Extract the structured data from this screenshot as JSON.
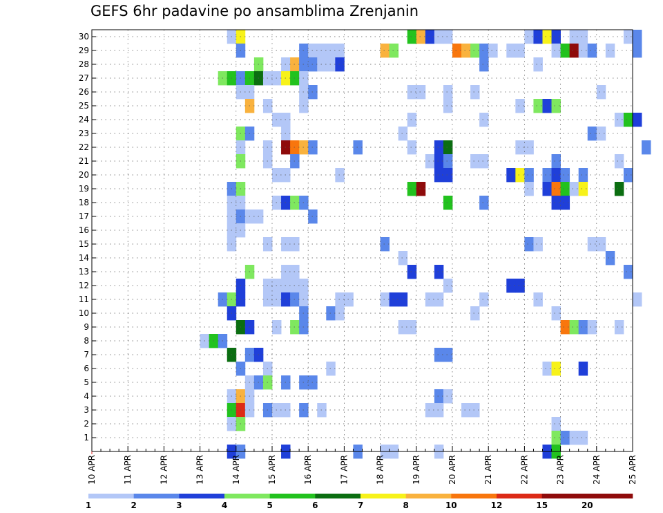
{
  "chart_data": {
    "type": "heatmap",
    "title": "GEFS 6hr padavine po ansamblima Zrenjanin",
    "x_tick_labels": [
      "10 APR",
      "11 APR",
      "12 APR",
      "13 APR",
      "14 APR",
      "15 APR",
      "16 APR",
      "17 APR",
      "18 APR",
      "19 APR",
      "20 APR",
      "21 APR",
      "22 APR",
      "23 APR",
      "24 APR",
      "25 APR"
    ],
    "y_tick_labels": [
      "1",
      "2",
      "3",
      "4",
      "5",
      "6",
      "7",
      "8",
      "9",
      "10",
      "11",
      "12",
      "13",
      "14",
      "15",
      "16",
      "17",
      "18",
      "19",
      "20",
      "21",
      "22",
      "23",
      "24",
      "25",
      "26",
      "27",
      "28",
      "29",
      "30"
    ],
    "x_range_days": [
      0,
      15
    ],
    "y_range_members": [
      0,
      30
    ],
    "grid": "dotted",
    "colorbar": {
      "labels": [
        "1",
        "2",
        "3",
        "4",
        "5",
        "6",
        "7",
        "8",
        "10",
        "12",
        "15",
        "20"
      ],
      "colors": [
        "#b3c7f7",
        "#5a87ea",
        "#1f3fd9",
        "#7fe85f",
        "#22c21e",
        "#0b6e11",
        "#f7f21a",
        "#f9b23e",
        "#f8760d",
        "#dc2a16",
        "#8f0b0b"
      ]
    },
    "cells_level_legend": "each cell: [day_offset_from_10_APR, member, level_index]; level 1 = 1-2, 2 = 2-3, 3 = 3-4, 4 = 4-5, 5 = 5-6, 6 = 6-7, 7 = 7-8, 8 = 8-10, 9 = 10-12, 10 = 12-15, 11 = 15-20",
    "cells": [
      [
        3.75,
        30,
        1
      ],
      [
        4.0,
        30,
        7
      ],
      [
        8.75,
        30,
        5
      ],
      [
        9.0,
        30,
        8
      ],
      [
        9.25,
        30,
        3
      ],
      [
        9.5,
        30,
        1
      ],
      [
        9.75,
        30,
        1
      ],
      [
        12.0,
        30,
        1
      ],
      [
        12.25,
        30,
        3
      ],
      [
        12.5,
        30,
        7
      ],
      [
        12.75,
        30,
        3
      ],
      [
        13.25,
        30,
        1
      ],
      [
        13.5,
        30,
        1
      ],
      [
        14.75,
        30,
        1
      ],
      [
        15.0,
        30,
        2
      ],
      [
        4.0,
        29,
        2
      ],
      [
        5.75,
        29,
        2
      ],
      [
        6.0,
        29,
        1
      ],
      [
        6.25,
        29,
        1
      ],
      [
        6.5,
        29,
        1
      ],
      [
        6.75,
        29,
        1
      ],
      [
        8.0,
        29,
        8
      ],
      [
        8.25,
        29,
        4
      ],
      [
        10.0,
        29,
        9
      ],
      [
        10.25,
        29,
        8
      ],
      [
        10.5,
        29,
        4
      ],
      [
        10.75,
        29,
        2
      ],
      [
        11.0,
        29,
        1
      ],
      [
        11.5,
        29,
        1
      ],
      [
        11.75,
        29,
        1
      ],
      [
        12.75,
        29,
        1
      ],
      [
        13.0,
        29,
        5
      ],
      [
        13.25,
        29,
        11
      ],
      [
        13.5,
        29,
        1
      ],
      [
        13.75,
        29,
        2
      ],
      [
        14.25,
        29,
        1
      ],
      [
        15.0,
        29,
        2
      ],
      [
        4.5,
        28,
        4
      ],
      [
        5.25,
        28,
        1
      ],
      [
        5.5,
        28,
        8
      ],
      [
        5.75,
        28,
        2
      ],
      [
        6.0,
        28,
        2
      ],
      [
        6.25,
        28,
        1
      ],
      [
        6.5,
        28,
        1
      ],
      [
        6.75,
        28,
        3
      ],
      [
        10.75,
        28,
        2
      ],
      [
        12.25,
        28,
        1
      ],
      [
        3.5,
        27,
        4
      ],
      [
        3.75,
        27,
        5
      ],
      [
        4.0,
        27,
        2
      ],
      [
        4.25,
        27,
        5
      ],
      [
        4.5,
        27,
        6
      ],
      [
        4.75,
        27,
        1
      ],
      [
        5.0,
        27,
        1
      ],
      [
        5.25,
        27,
        7
      ],
      [
        5.5,
        27,
        5
      ],
      [
        5.75,
        27,
        1
      ],
      [
        4.0,
        26,
        1
      ],
      [
        4.25,
        26,
        1
      ],
      [
        5.75,
        26,
        1
      ],
      [
        6.0,
        26,
        2
      ],
      [
        8.75,
        26,
        1
      ],
      [
        9.0,
        26,
        1
      ],
      [
        9.75,
        26,
        1
      ],
      [
        10.5,
        26,
        1
      ],
      [
        14.0,
        26,
        1
      ],
      [
        4.25,
        25,
        8
      ],
      [
        4.75,
        25,
        1
      ],
      [
        5.75,
        25,
        1
      ],
      [
        9.75,
        25,
        1
      ],
      [
        11.75,
        25,
        1
      ],
      [
        12.25,
        25,
        4
      ],
      [
        12.5,
        25,
        3
      ],
      [
        12.75,
        25,
        4
      ],
      [
        5.0,
        24,
        1
      ],
      [
        5.25,
        24,
        1
      ],
      [
        8.75,
        24,
        1
      ],
      [
        10.75,
        24,
        1
      ],
      [
        14.5,
        24,
        1
      ],
      [
        14.75,
        24,
        5
      ],
      [
        15.0,
        24,
        3
      ],
      [
        4.0,
        23,
        4
      ],
      [
        4.25,
        23,
        2
      ],
      [
        5.25,
        23,
        1
      ],
      [
        8.5,
        23,
        1
      ],
      [
        13.75,
        23,
        2
      ],
      [
        14.0,
        23,
        1
      ],
      [
        4.0,
        22,
        1
      ],
      [
        4.75,
        22,
        1
      ],
      [
        5.25,
        22,
        11
      ],
      [
        5.5,
        22,
        9
      ],
      [
        5.75,
        22,
        8
      ],
      [
        6.0,
        22,
        2
      ],
      [
        7.25,
        22,
        2
      ],
      [
        8.75,
        22,
        1
      ],
      [
        9.5,
        22,
        3
      ],
      [
        9.75,
        22,
        6
      ],
      [
        11.75,
        22,
        1
      ],
      [
        12.0,
        22,
        1
      ],
      [
        15.25,
        22,
        2
      ],
      [
        4.0,
        21,
        4
      ],
      [
        4.75,
        21,
        1
      ],
      [
        5.5,
        21,
        2
      ],
      [
        9.25,
        21,
        1
      ],
      [
        9.5,
        21,
        3
      ],
      [
        9.75,
        21,
        2
      ],
      [
        10.5,
        21,
        1
      ],
      [
        10.75,
        21,
        1
      ],
      [
        12.75,
        21,
        2
      ],
      [
        14.5,
        21,
        1
      ],
      [
        5.0,
        20,
        1
      ],
      [
        5.25,
        20,
        1
      ],
      [
        6.75,
        20,
        1
      ],
      [
        9.5,
        20,
        3
      ],
      [
        9.75,
        20,
        3
      ],
      [
        11.5,
        20,
        3
      ],
      [
        11.75,
        20,
        7
      ],
      [
        12.0,
        20,
        2
      ],
      [
        12.5,
        20,
        2
      ],
      [
        12.75,
        20,
        3
      ],
      [
        13.0,
        20,
        2
      ],
      [
        13.5,
        20,
        2
      ],
      [
        14.75,
        20,
        2
      ],
      [
        3.75,
        19,
        2
      ],
      [
        4.0,
        19,
        4
      ],
      [
        8.75,
        19,
        5
      ],
      [
        9.0,
        19,
        11
      ],
      [
        12.0,
        19,
        1
      ],
      [
        12.5,
        19,
        3
      ],
      [
        12.75,
        19,
        9
      ],
      [
        13.0,
        19,
        5
      ],
      [
        13.25,
        19,
        1
      ],
      [
        13.5,
        19,
        7
      ],
      [
        14.5,
        19,
        6
      ],
      [
        3.75,
        18,
        1
      ],
      [
        4.0,
        18,
        1
      ],
      [
        5.0,
        18,
        1
      ],
      [
        5.25,
        18,
        3
      ],
      [
        5.5,
        18,
        4
      ],
      [
        5.75,
        18,
        2
      ],
      [
        9.75,
        18,
        5
      ],
      [
        10.75,
        18,
        2
      ],
      [
        12.75,
        18,
        3
      ],
      [
        13.0,
        18,
        3
      ],
      [
        3.75,
        17,
        1
      ],
      [
        4.0,
        17,
        2
      ],
      [
        4.25,
        17,
        1
      ],
      [
        4.5,
        17,
        1
      ],
      [
        6.0,
        17,
        2
      ],
      [
        3.75,
        16,
        1
      ],
      [
        4.0,
        16,
        1
      ],
      [
        3.75,
        15,
        1
      ],
      [
        4.75,
        15,
        1
      ],
      [
        5.25,
        15,
        1
      ],
      [
        5.5,
        15,
        1
      ],
      [
        8.0,
        15,
        2
      ],
      [
        12.0,
        15,
        2
      ],
      [
        12.25,
        15,
        1
      ],
      [
        13.75,
        15,
        1
      ],
      [
        14.0,
        15,
        1
      ],
      [
        8.5,
        14,
        1
      ],
      [
        14.25,
        14,
        2
      ],
      [
        4.25,
        13,
        4
      ],
      [
        5.25,
        13,
        1
      ],
      [
        5.5,
        13,
        1
      ],
      [
        8.75,
        13,
        3
      ],
      [
        9.5,
        13,
        3
      ],
      [
        14.75,
        13,
        2
      ],
      [
        4.0,
        12,
        3
      ],
      [
        4.75,
        12,
        1
      ],
      [
        5.0,
        12,
        1
      ],
      [
        5.25,
        12,
        1
      ],
      [
        5.5,
        12,
        1
      ],
      [
        5.75,
        12,
        1
      ],
      [
        9.75,
        12,
        1
      ],
      [
        11.5,
        12,
        3
      ],
      [
        11.75,
        12,
        3
      ],
      [
        3.5,
        11,
        2
      ],
      [
        3.75,
        11,
        4
      ],
      [
        4.0,
        11,
        3
      ],
      [
        4.75,
        11,
        1
      ],
      [
        5.0,
        11,
        1
      ],
      [
        5.25,
        11,
        3
      ],
      [
        5.5,
        11,
        2
      ],
      [
        5.75,
        11,
        1
      ],
      [
        6.75,
        11,
        1
      ],
      [
        7.0,
        11,
        1
      ],
      [
        8.0,
        11,
        1
      ],
      [
        8.25,
        11,
        3
      ],
      [
        8.5,
        11,
        3
      ],
      [
        9.25,
        11,
        1
      ],
      [
        9.5,
        11,
        1
      ],
      [
        10.75,
        11,
        1
      ],
      [
        12.25,
        11,
        1
      ],
      [
        15.0,
        11,
        1
      ],
      [
        3.75,
        10,
        3
      ],
      [
        5.75,
        10,
        2
      ],
      [
        6.5,
        10,
        2
      ],
      [
        6.75,
        10,
        1
      ],
      [
        10.5,
        10,
        1
      ],
      [
        12.75,
        10,
        1
      ],
      [
        4.0,
        9,
        6
      ],
      [
        4.25,
        9,
        3
      ],
      [
        5.0,
        9,
        1
      ],
      [
        5.5,
        9,
        4
      ],
      [
        5.75,
        9,
        2
      ],
      [
        8.5,
        9,
        1
      ],
      [
        8.75,
        9,
        1
      ],
      [
        13.0,
        9,
        9
      ],
      [
        13.25,
        9,
        4
      ],
      [
        13.5,
        9,
        2
      ],
      [
        13.75,
        9,
        1
      ],
      [
        14.5,
        9,
        1
      ],
      [
        3.0,
        8,
        1
      ],
      [
        3.25,
        8,
        5
      ],
      [
        3.5,
        8,
        2
      ],
      [
        3.75,
        7,
        6
      ],
      [
        4.25,
        7,
        2
      ],
      [
        4.5,
        7,
        3
      ],
      [
        9.5,
        7,
        2
      ],
      [
        9.75,
        7,
        2
      ],
      [
        4.0,
        6,
        2
      ],
      [
        4.75,
        6,
        1
      ],
      [
        6.5,
        6,
        1
      ],
      [
        12.5,
        6,
        1
      ],
      [
        12.75,
        6,
        7
      ],
      [
        13.5,
        6,
        3
      ],
      [
        4.25,
        5,
        1
      ],
      [
        4.5,
        5,
        2
      ],
      [
        4.75,
        5,
        4
      ],
      [
        5.25,
        5,
        2
      ],
      [
        5.75,
        5,
        2
      ],
      [
        6.0,
        5,
        2
      ],
      [
        3.75,
        4,
        1
      ],
      [
        4.0,
        4,
        8
      ],
      [
        4.25,
        4,
        1
      ],
      [
        9.5,
        4,
        2
      ],
      [
        9.75,
        4,
        1
      ],
      [
        3.75,
        3,
        5
      ],
      [
        4.0,
        3,
        10
      ],
      [
        4.25,
        3,
        1
      ],
      [
        4.75,
        3,
        2
      ],
      [
        5.0,
        3,
        1
      ],
      [
        5.25,
        3,
        1
      ],
      [
        5.75,
        3,
        2
      ],
      [
        6.25,
        3,
        1
      ],
      [
        9.25,
        3,
        1
      ],
      [
        9.5,
        3,
        1
      ],
      [
        10.25,
        3,
        1
      ],
      [
        10.5,
        3,
        1
      ],
      [
        3.75,
        2,
        1
      ],
      [
        4.0,
        2,
        4
      ],
      [
        12.75,
        2,
        1
      ],
      [
        12.75,
        1,
        4
      ],
      [
        13.0,
        1,
        2
      ],
      [
        13.25,
        1,
        1
      ],
      [
        13.5,
        1,
        1
      ],
      [
        3.75,
        0,
        3
      ],
      [
        4.0,
        0,
        2
      ],
      [
        5.25,
        0,
        3
      ],
      [
        7.25,
        0,
        2
      ],
      [
        8.0,
        0,
        1
      ],
      [
        8.25,
        0,
        1
      ],
      [
        9.5,
        0,
        1
      ],
      [
        12.5,
        0,
        3
      ],
      [
        12.75,
        0,
        5
      ]
    ]
  }
}
